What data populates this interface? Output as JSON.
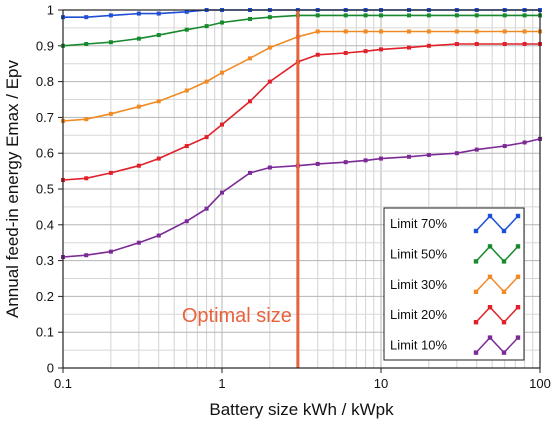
{
  "chart_data": {
    "type": "line",
    "xlabel": "Battery size kWh / kWpk",
    "ylabel": "Annual feed-in energy Emax / Epv",
    "xscale": "log",
    "xlim": [
      0.1,
      100
    ],
    "ylim": [
      0,
      1
    ],
    "xticks": [
      {
        "value": 0.1,
        "label": "0.1"
      },
      {
        "value": 1,
        "label": "1"
      },
      {
        "value": 10,
        "label": "10"
      },
      {
        "value": 100,
        "label": "100"
      }
    ],
    "yticks": [
      {
        "value": 0,
        "label": "0"
      },
      {
        "value": 0.1,
        "label": "0.1"
      },
      {
        "value": 0.2,
        "label": "0.2"
      },
      {
        "value": 0.3,
        "label": "0.3"
      },
      {
        "value": 0.4,
        "label": "0.4"
      },
      {
        "value": 0.5,
        "label": "0.5"
      },
      {
        "value": 0.6,
        "label": "0.6"
      },
      {
        "value": 0.7,
        "label": "0.7"
      },
      {
        "value": 0.8,
        "label": "0.8"
      },
      {
        "value": 0.9,
        "label": "0.9"
      },
      {
        "value": 1,
        "label": "1"
      }
    ],
    "grid": true,
    "legend_position": "bottom-right",
    "x": [
      0.1,
      0.14,
      0.2,
      0.3,
      0.4,
      0.6,
      0.8,
      1,
      1.5,
      2,
      3,
      4,
      6,
      8,
      10,
      15,
      20,
      30,
      40,
      60,
      80,
      100
    ],
    "series": [
      {
        "name": "Limit 70%",
        "color": "#1f4fd6",
        "values": [
          0.98,
          0.98,
          0.985,
          0.99,
          0.99,
          0.995,
          1.0,
          1.0,
          1.0,
          1.0,
          1.0,
          1.0,
          1.0,
          1.0,
          1.0,
          1.0,
          1.0,
          1.0,
          1.0,
          1.0,
          1.0,
          1.0
        ]
      },
      {
        "name": "Limit 50%",
        "color": "#178a2e",
        "values": [
          0.9,
          0.905,
          0.91,
          0.92,
          0.93,
          0.945,
          0.955,
          0.965,
          0.975,
          0.98,
          0.985,
          0.985,
          0.985,
          0.985,
          0.985,
          0.985,
          0.985,
          0.985,
          0.985,
          0.985,
          0.985,
          0.985
        ]
      },
      {
        "name": "Limit 30%",
        "color": "#f08a24",
        "values": [
          0.69,
          0.695,
          0.71,
          0.73,
          0.745,
          0.775,
          0.8,
          0.825,
          0.865,
          0.895,
          0.925,
          0.94,
          0.94,
          0.94,
          0.94,
          0.94,
          0.94,
          0.94,
          0.94,
          0.94,
          0.94,
          0.94
        ]
      },
      {
        "name": "Limit 20%",
        "color": "#e0202a",
        "values": [
          0.525,
          0.53,
          0.545,
          0.565,
          0.585,
          0.62,
          0.645,
          0.68,
          0.745,
          0.8,
          0.855,
          0.875,
          0.88,
          0.885,
          0.89,
          0.895,
          0.9,
          0.905,
          0.905,
          0.905,
          0.905,
          0.905
        ]
      },
      {
        "name": "Limit 10%",
        "color": "#7b2a96",
        "values": [
          0.31,
          0.315,
          0.325,
          0.35,
          0.37,
          0.41,
          0.445,
          0.49,
          0.545,
          0.56,
          0.565,
          0.57,
          0.575,
          0.58,
          0.585,
          0.59,
          0.595,
          0.6,
          0.61,
          0.62,
          0.63,
          0.64
        ]
      }
    ],
    "marker_line": {
      "x": 3,
      "color": "#e8623c"
    },
    "annotations": [
      {
        "text": "Optimal size",
        "color": "#e8623c"
      }
    ]
  }
}
